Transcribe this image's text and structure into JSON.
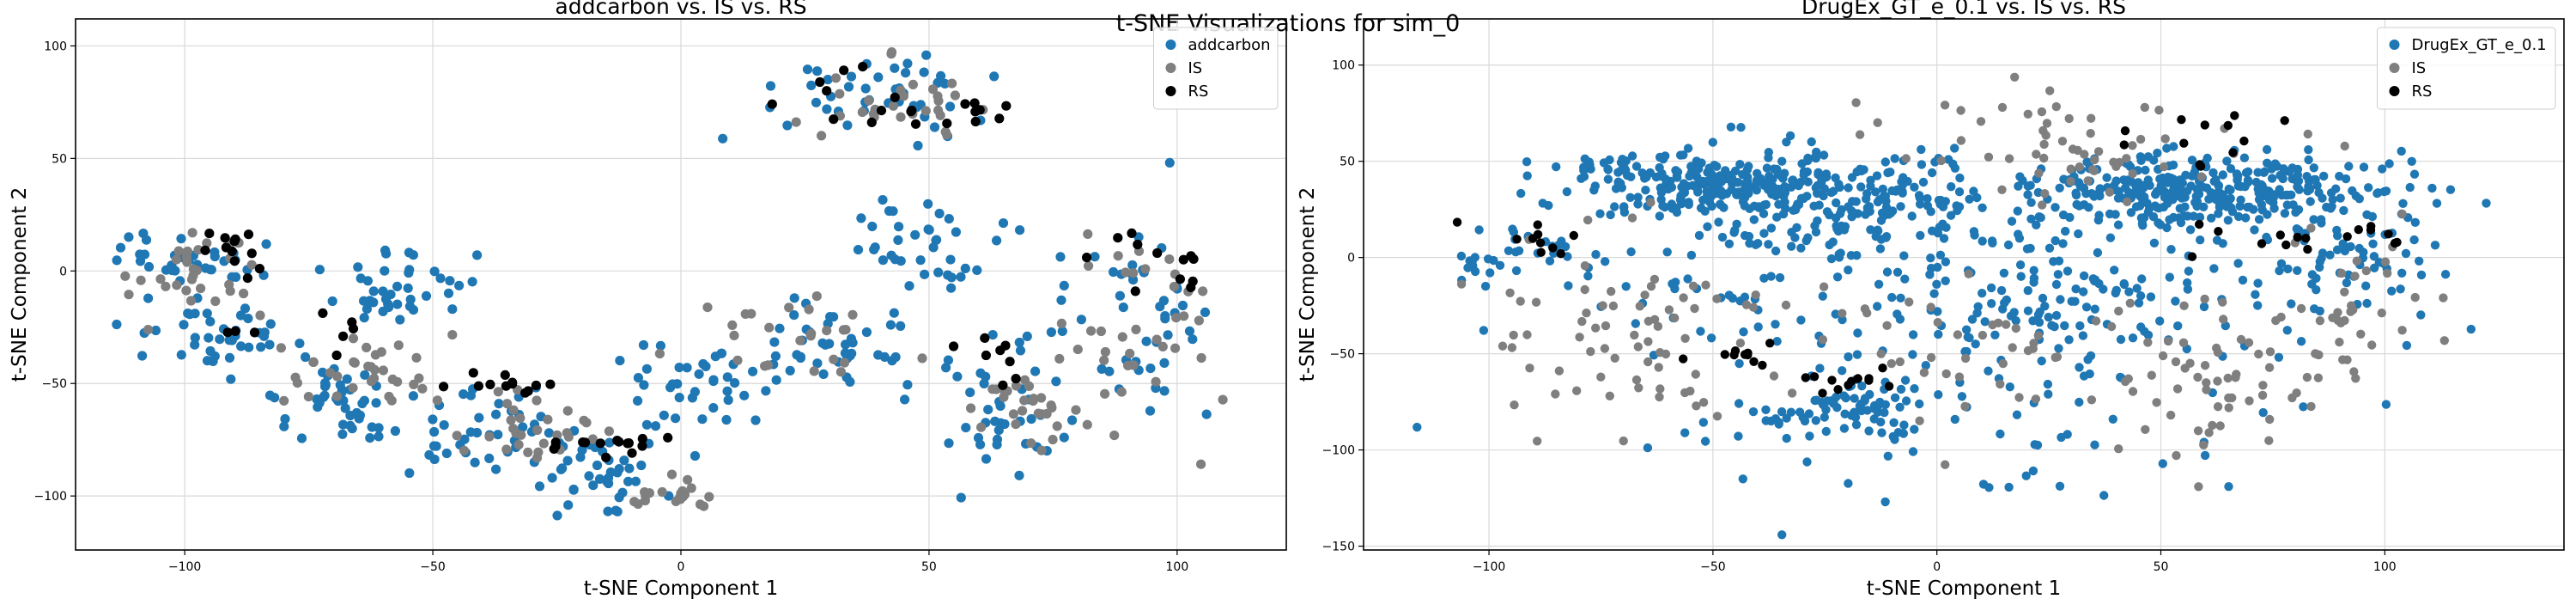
{
  "figure": {
    "suptitle": "t-SNE Visualizations for sim_0"
  },
  "colors": {
    "blue": "#1f77b4",
    "gray": "#7f7f7f",
    "black": "#000000",
    "grid": "#d9d9d9"
  },
  "chart_data": [
    {
      "type": "scatter",
      "title": "addcarbon vs. IS vs. RS",
      "xlabel": "t-SNE Component 1",
      "ylabel": "t-SNE Component 2",
      "xlim": [
        -122,
        122
      ],
      "ylim": [
        -124,
        112
      ],
      "xticks": [
        -100,
        -50,
        0,
        50,
        100
      ],
      "yticks": [
        -100,
        -50,
        0,
        50,
        100
      ],
      "grid": true,
      "legend_position": "top-right",
      "series": [
        {
          "name": "addcarbon",
          "color": "#1f77b4",
          "marker": "circle"
        },
        {
          "name": "IS",
          "color": "#7f7f7f",
          "marker": "circle"
        },
        {
          "name": "RS",
          "color": "#000000",
          "marker": "circle"
        }
      ],
      "clusters": [
        {
          "series": 0,
          "cx": -100,
          "cy": 5,
          "sx": 8,
          "sy": 6,
          "n": 40
        },
        {
          "series": 0,
          "cx": -95,
          "cy": -30,
          "sx": 8,
          "sy": 8,
          "n": 40
        },
        {
          "series": 0,
          "cx": -70,
          "cy": -60,
          "sx": 7,
          "sy": 10,
          "n": 45
        },
        {
          "series": 0,
          "cx": -55,
          "cy": -10,
          "sx": 8,
          "sy": 8,
          "n": 40
        },
        {
          "series": 0,
          "cx": -40,
          "cy": -75,
          "sx": 10,
          "sy": 10,
          "n": 45
        },
        {
          "series": 0,
          "cx": -15,
          "cy": -90,
          "sx": 8,
          "sy": 10,
          "n": 40
        },
        {
          "series": 0,
          "cx": 5,
          "cy": -50,
          "sx": 10,
          "sy": 8,
          "n": 40
        },
        {
          "series": 0,
          "cx": 30,
          "cy": -35,
          "sx": 10,
          "sy": 10,
          "n": 40
        },
        {
          "series": 0,
          "cx": 50,
          "cy": 10,
          "sx": 8,
          "sy": 12,
          "n": 40
        },
        {
          "series": 0,
          "cx": 40,
          "cy": 80,
          "sx": 12,
          "sy": 12,
          "n": 45
        },
        {
          "series": 0,
          "cx": 65,
          "cy": -60,
          "sx": 7,
          "sy": 15,
          "n": 40
        },
        {
          "series": 0,
          "cx": 90,
          "cy": -25,
          "sx": 8,
          "sy": 20,
          "n": 45
        },
        {
          "series": 1,
          "cx": -98,
          "cy": 0,
          "sx": 8,
          "sy": 8,
          "n": 30
        },
        {
          "series": 1,
          "cx": -60,
          "cy": -45,
          "sx": 10,
          "sy": 10,
          "n": 35
        },
        {
          "series": 1,
          "cx": -30,
          "cy": -70,
          "sx": 8,
          "sy": 8,
          "n": 30
        },
        {
          "series": 1,
          "cx": 0,
          "cy": -100,
          "sx": 5,
          "sy": 5,
          "n": 20
        },
        {
          "series": 1,
          "cx": 20,
          "cy": -30,
          "sx": 10,
          "sy": 10,
          "n": 25
        },
        {
          "series": 1,
          "cx": 45,
          "cy": 75,
          "sx": 10,
          "sy": 10,
          "n": 30
        },
        {
          "series": 1,
          "cx": 70,
          "cy": -60,
          "sx": 6,
          "sy": 12,
          "n": 30
        },
        {
          "series": 1,
          "cx": 95,
          "cy": -30,
          "sx": 6,
          "sy": 20,
          "n": 35
        },
        {
          "series": 2,
          "cx": -90,
          "cy": 10,
          "sx": 3,
          "sy": 4,
          "n": 12
        },
        {
          "series": 2,
          "cx": -80,
          "cy": -30,
          "sx": 8,
          "sy": 5,
          "n": 8
        },
        {
          "series": 2,
          "cx": -35,
          "cy": -50,
          "sx": 8,
          "sy": 4,
          "n": 12
        },
        {
          "series": 2,
          "cx": -15,
          "cy": -78,
          "sx": 6,
          "sy": 3,
          "n": 15
        },
        {
          "series": 2,
          "cx": 30,
          "cy": 75,
          "sx": 8,
          "sy": 8,
          "n": 12
        },
        {
          "series": 2,
          "cx": 60,
          "cy": 68,
          "sx": 5,
          "sy": 4,
          "n": 8
        },
        {
          "series": 2,
          "cx": 65,
          "cy": -40,
          "sx": 5,
          "sy": 8,
          "n": 8
        },
        {
          "series": 2,
          "cx": 100,
          "cy": 10,
          "sx": 8,
          "sy": 10,
          "n": 12
        }
      ]
    },
    {
      "type": "scatter",
      "title": "DrugEx_GT_e_0.1 vs. IS vs. RS",
      "xlabel": "t-SNE Component 1",
      "ylabel": "t-SNE Component 2",
      "xlim": [
        -128,
        140
      ],
      "ylim": [
        -152,
        124
      ],
      "xticks": [
        -100,
        -50,
        0,
        50,
        100
      ],
      "yticks": [
        -150,
        -100,
        -50,
        0,
        50,
        100
      ],
      "grid": true,
      "legend_position": "top-right",
      "series": [
        {
          "name": "DrugEx_GT_e_0.1",
          "color": "#1f77b4",
          "marker": "circle"
        },
        {
          "name": "IS",
          "color": "#7f7f7f",
          "marker": "circle"
        },
        {
          "name": "RS",
          "color": "#000000",
          "marker": "circle"
        }
      ],
      "clusters": [
        {
          "series": 0,
          "cx": -55,
          "cy": 40,
          "sx": 15,
          "sy": 8,
          "n": 200
        },
        {
          "series": 0,
          "cx": -20,
          "cy": 30,
          "sx": 20,
          "sy": 15,
          "n": 220
        },
        {
          "series": 0,
          "cx": 60,
          "cy": 35,
          "sx": 20,
          "sy": 10,
          "n": 350
        },
        {
          "series": 0,
          "cx": -20,
          "cy": -80,
          "sx": 8,
          "sy": 8,
          "n": 70
        },
        {
          "series": 0,
          "cx": 0,
          "cy": -20,
          "sx": 45,
          "sy": 30,
          "n": 180
        },
        {
          "series": 0,
          "cx": 30,
          "cy": -20,
          "sx": 15,
          "sy": 15,
          "n": 60
        },
        {
          "series": 0,
          "cx": 90,
          "cy": 0,
          "sx": 12,
          "sy": 15,
          "n": 60
        },
        {
          "series": 0,
          "cx": -90,
          "cy": 0,
          "sx": 10,
          "sy": 10,
          "n": 40
        },
        {
          "series": 0,
          "cx": 10,
          "cy": -90,
          "sx": 40,
          "sy": 25,
          "n": 60
        },
        {
          "series": 1,
          "cx": -70,
          "cy": -40,
          "sx": 20,
          "sy": 25,
          "n": 70
        },
        {
          "series": 1,
          "cx": 30,
          "cy": 60,
          "sx": 20,
          "sy": 15,
          "n": 60
        },
        {
          "series": 1,
          "cx": 60,
          "cy": -70,
          "sx": 10,
          "sy": 20,
          "n": 50
        },
        {
          "series": 1,
          "cx": 90,
          "cy": -30,
          "sx": 10,
          "sy": 20,
          "n": 40
        },
        {
          "series": 1,
          "cx": 10,
          "cy": -50,
          "sx": 25,
          "sy": 20,
          "n": 50
        },
        {
          "series": 2,
          "cx": -90,
          "cy": 10,
          "sx": 5,
          "sy": 6,
          "n": 10
        },
        {
          "series": 2,
          "cx": -45,
          "cy": -50,
          "sx": 6,
          "sy": 3,
          "n": 10
        },
        {
          "series": 2,
          "cx": -20,
          "cy": -65,
          "sx": 6,
          "sy": 3,
          "n": 12
        },
        {
          "series": 2,
          "cx": 60,
          "cy": 60,
          "sx": 10,
          "sy": 8,
          "n": 12
        },
        {
          "series": 2,
          "cx": 80,
          "cy": 5,
          "sx": 10,
          "sy": 10,
          "n": 10
        },
        {
          "series": 2,
          "cx": 100,
          "cy": 15,
          "sx": 5,
          "sy": 5,
          "n": 6
        }
      ]
    }
  ]
}
